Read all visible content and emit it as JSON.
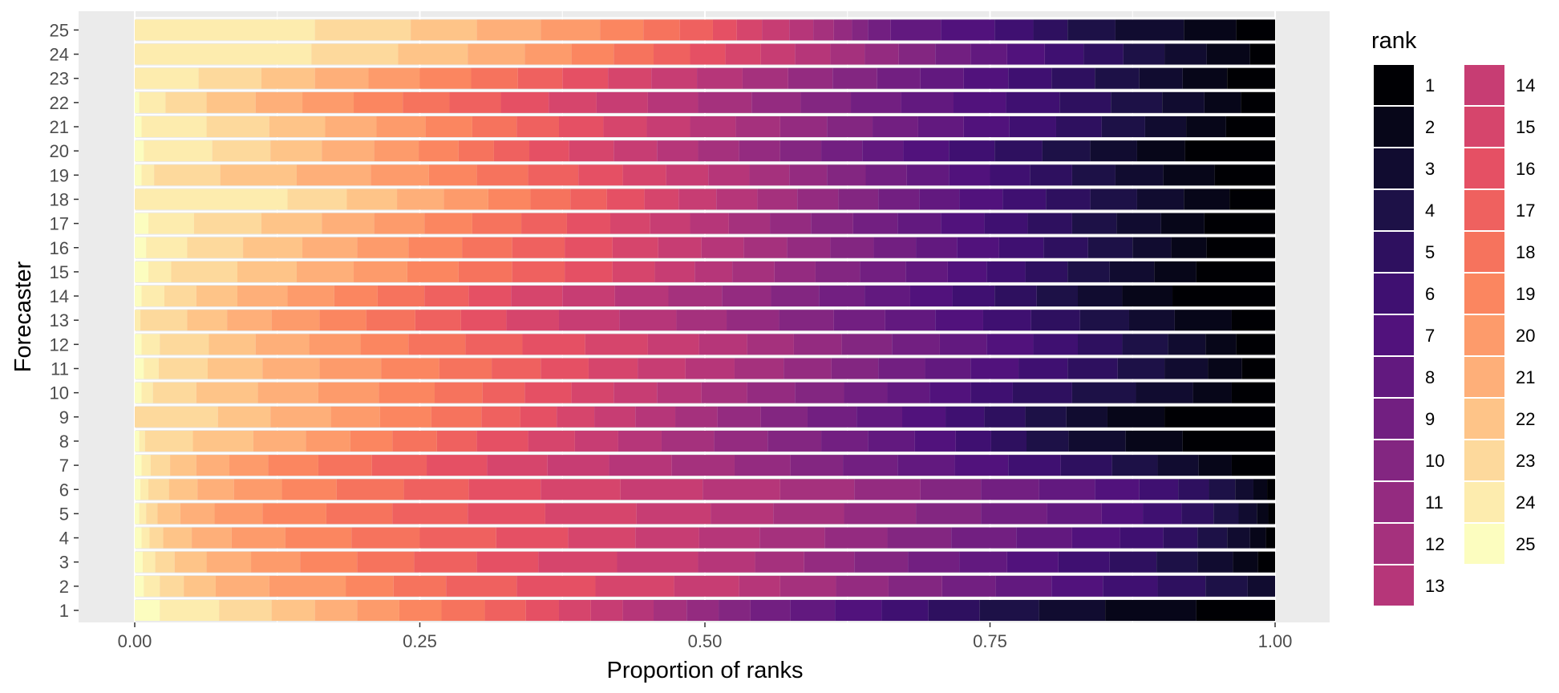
{
  "chart_data": {
    "type": "bar",
    "orientation": "horizontal",
    "stacked": true,
    "xlabel": "Proportion of ranks",
    "ylabel": "Forecaster",
    "xlim": [
      0,
      1
    ],
    "x_ticks": [
      "0.00",
      "0.25",
      "0.50",
      "0.75",
      "1.00"
    ],
    "categories": [
      "1",
      "2",
      "3",
      "4",
      "5",
      "6",
      "7",
      "8",
      "9",
      "10",
      "11",
      "12",
      "13",
      "14",
      "15",
      "16",
      "17",
      "18",
      "19",
      "20",
      "21",
      "22",
      "23",
      "24",
      "25"
    ],
    "legend": {
      "title": "rank",
      "position": "right",
      "labels": [
        "1",
        "2",
        "3",
        "4",
        "5",
        "6",
        "7",
        "8",
        "9",
        "10",
        "11",
        "12",
        "13",
        "14",
        "15",
        "16",
        "17",
        "18",
        "19",
        "20",
        "21",
        "22",
        "23",
        "24",
        "25"
      ],
      "colors": [
        "#000004",
        "#07071d",
        "#140e36",
        "#251255",
        "#3b0f70",
        "#51127c",
        "#641a80",
        "#782281",
        "#8c2981",
        "#a1307e",
        "#b73779",
        "#ca3e72",
        "#de4968",
        "#ec5f5e",
        "#f7705c",
        "#fb8861",
        "#fe9f6d",
        "#feb77e",
        "#fecf92",
        "#fde7a8",
        "#fcfdbf",
        "#fcfdbf",
        "#fcfdbf",
        "#fcfdbf",
        "#fcfdbf"
      ],
      "scale": "magma"
    },
    "grid": true,
    "stack_order_left_to_right": "rank 25 to rank 1",
    "series_boundaries_note": "each row lists cumulative boundaries from x=0 for ranks 25,24,...,1",
    "rows": [
      {
        "forecaster": "1",
        "values": [
          0.022,
          0.074,
          0.12,
          0.158,
          0.195,
          0.232,
          0.269,
          0.307,
          0.343,
          0.372,
          0.4,
          0.428,
          0.455,
          0.484,
          0.512,
          0.54,
          0.575,
          0.614,
          0.655,
          0.696,
          0.741,
          0.793,
          0.851,
          0.931,
          1.0
        ]
      },
      {
        "forecaster": "2",
        "values": [
          0.008,
          0.022,
          0.043,
          0.071,
          0.118,
          0.185,
          0.227,
          0.273,
          0.335,
          0.404,
          0.473,
          0.53,
          0.566,
          0.615,
          0.661,
          0.708,
          0.755,
          0.804,
          0.849,
          0.897,
          0.939,
          0.976,
          1.0,
          1.0,
          1.0
        ]
      },
      {
        "forecaster": "3",
        "values": [
          0.007,
          0.018,
          0.035,
          0.063,
          0.102,
          0.145,
          0.195,
          0.245,
          0.3,
          0.354,
          0.423,
          0.494,
          0.544,
          0.587,
          0.631,
          0.678,
          0.723,
          0.765,
          0.81,
          0.855,
          0.896,
          0.932,
          0.963,
          0.985,
          1.0
        ]
      },
      {
        "forecaster": "4",
        "values": [
          0.006,
          0.013,
          0.025,
          0.05,
          0.085,
          0.132,
          0.19,
          0.25,
          0.317,
          0.38,
          0.439,
          0.495,
          0.548,
          0.605,
          0.66,
          0.716,
          0.773,
          0.822,
          0.864,
          0.902,
          0.932,
          0.958,
          0.978,
          0.992,
          1.0
        ]
      },
      {
        "forecaster": "5",
        "values": [
          0.004,
          0.01,
          0.02,
          0.04,
          0.07,
          0.112,
          0.168,
          0.226,
          0.292,
          0.36,
          0.44,
          0.505,
          0.56,
          0.622,
          0.685,
          0.742,
          0.8,
          0.848,
          0.884,
          0.918,
          0.946,
          0.968,
          0.984,
          0.994,
          1.0
        ]
      },
      {
        "forecaster": "6",
        "values": [
          0.005,
          0.012,
          0.03,
          0.055,
          0.087,
          0.129,
          0.177,
          0.236,
          0.293,
          0.356,
          0.426,
          0.498,
          0.566,
          0.631,
          0.689,
          0.742,
          0.793,
          0.842,
          0.881,
          0.915,
          0.942,
          0.965,
          0.981,
          0.993,
          1.0
        ]
      },
      {
        "forecaster": "7",
        "values": [
          0.006,
          0.014,
          0.031,
          0.054,
          0.083,
          0.117,
          0.161,
          0.208,
          0.256,
          0.309,
          0.362,
          0.416,
          0.471,
          0.526,
          0.575,
          0.621,
          0.669,
          0.719,
          0.766,
          0.812,
          0.857,
          0.897,
          0.933,
          0.962,
          1.0
        ]
      },
      {
        "forecaster": "8",
        "values": [
          0.004,
          0.009,
          0.051,
          0.104,
          0.15,
          0.189,
          0.226,
          0.265,
          0.3,
          0.345,
          0.386,
          0.424,
          0.462,
          0.508,
          0.555,
          0.602,
          0.643,
          0.684,
          0.72,
          0.751,
          0.782,
          0.819,
          0.869,
          0.919,
          1.0
        ]
      },
      {
        "forecaster": "9",
        "values": [
          0.0,
          0.0,
          0.073,
          0.119,
          0.172,
          0.215,
          0.26,
          0.304,
          0.338,
          0.37,
          0.403,
          0.439,
          0.474,
          0.511,
          0.549,
          0.59,
          0.633,
          0.673,
          0.711,
          0.745,
          0.781,
          0.817,
          0.853,
          0.903,
          1.0
        ]
      },
      {
        "forecaster": "10",
        "values": [
          0.006,
          0.016,
          0.054,
          0.108,
          0.161,
          0.214,
          0.263,
          0.305,
          0.342,
          0.383,
          0.42,
          0.458,
          0.497,
          0.537,
          0.579,
          0.622,
          0.66,
          0.697,
          0.733,
          0.77,
          0.822,
          0.878,
          0.928,
          0.962,
          1.0
        ]
      },
      {
        "forecaster": "11",
        "values": [
          0.008,
          0.021,
          0.064,
          0.112,
          0.162,
          0.216,
          0.267,
          0.313,
          0.356,
          0.398,
          0.441,
          0.483,
          0.526,
          0.569,
          0.611,
          0.652,
          0.693,
          0.733,
          0.775,
          0.818,
          0.862,
          0.903,
          0.941,
          0.971,
          1.0
        ]
      },
      {
        "forecaster": "12",
        "values": [
          0.006,
          0.022,
          0.065,
          0.106,
          0.153,
          0.198,
          0.24,
          0.29,
          0.34,
          0.395,
          0.45,
          0.495,
          0.537,
          0.578,
          0.62,
          0.664,
          0.706,
          0.747,
          0.788,
          0.827,
          0.866,
          0.906,
          0.939,
          0.966,
          1.0
        ]
      },
      {
        "forecaster": "13",
        "values": [
          0.0,
          0.005,
          0.046,
          0.081,
          0.12,
          0.162,
          0.203,
          0.246,
          0.286,
          0.326,
          0.372,
          0.425,
          0.475,
          0.519,
          0.565,
          0.613,
          0.658,
          0.702,
          0.744,
          0.786,
          0.829,
          0.872,
          0.912,
          0.962,
          1.0
        ]
      },
      {
        "forecaster": "14",
        "values": [
          0.006,
          0.026,
          0.054,
          0.09,
          0.134,
          0.175,
          0.213,
          0.254,
          0.293,
          0.33,
          0.375,
          0.421,
          0.468,
          0.515,
          0.558,
          0.6,
          0.64,
          0.68,
          0.717,
          0.754,
          0.791,
          0.827,
          0.866,
          0.91,
          1.0
        ]
      },
      {
        "forecaster": "15",
        "values": [
          0.012,
          0.032,
          0.09,
          0.142,
          0.192,
          0.239,
          0.284,
          0.331,
          0.377,
          0.419,
          0.456,
          0.491,
          0.524,
          0.561,
          0.597,
          0.636,
          0.676,
          0.713,
          0.747,
          0.781,
          0.818,
          0.855,
          0.894,
          0.931,
          1.0
        ]
      },
      {
        "forecaster": "16",
        "values": [
          0.01,
          0.046,
          0.095,
          0.147,
          0.195,
          0.24,
          0.287,
          0.331,
          0.377,
          0.419,
          0.459,
          0.497,
          0.534,
          0.572,
          0.61,
          0.648,
          0.685,
          0.721,
          0.758,
          0.797,
          0.836,
          0.875,
          0.909,
          0.94,
          1.0
        ]
      },
      {
        "forecaster": "17",
        "values": [
          0.012,
          0.052,
          0.111,
          0.164,
          0.21,
          0.254,
          0.296,
          0.339,
          0.379,
          0.417,
          0.452,
          0.487,
          0.521,
          0.557,
          0.593,
          0.63,
          0.669,
          0.707,
          0.745,
          0.783,
          0.822,
          0.861,
          0.9,
          0.938,
          1.0
        ]
      },
      {
        "forecaster": "18",
        "values": [
          0.0,
          0.134,
          0.186,
          0.23,
          0.271,
          0.31,
          0.347,
          0.382,
          0.414,
          0.447,
          0.477,
          0.51,
          0.546,
          0.581,
          0.617,
          0.652,
          0.688,
          0.723,
          0.761,
          0.799,
          0.838,
          0.879,
          0.92,
          0.96,
          1.0
        ]
      },
      {
        "forecaster": "19",
        "values": [
          0.006,
          0.017,
          0.075,
          0.142,
          0.207,
          0.258,
          0.3,
          0.345,
          0.389,
          0.428,
          0.466,
          0.503,
          0.539,
          0.574,
          0.607,
          0.641,
          0.677,
          0.714,
          0.75,
          0.785,
          0.822,
          0.86,
          0.902,
          0.947,
          1.0
        ]
      },
      {
        "forecaster": "20",
        "values": [
          0.008,
          0.068,
          0.119,
          0.164,
          0.21,
          0.249,
          0.284,
          0.315,
          0.346,
          0.381,
          0.42,
          0.458,
          0.494,
          0.53,
          0.566,
          0.602,
          0.638,
          0.674,
          0.714,
          0.754,
          0.796,
          0.838,
          0.879,
          0.921,
          1.0
        ]
      },
      {
        "forecaster": "21",
        "values": [
          0.006,
          0.063,
          0.118,
          0.167,
          0.212,
          0.255,
          0.296,
          0.335,
          0.372,
          0.411,
          0.449,
          0.487,
          0.527,
          0.566,
          0.607,
          0.647,
          0.687,
          0.727,
          0.767,
          0.808,
          0.848,
          0.886,
          0.922,
          0.957,
          1.0
        ]
      },
      {
        "forecaster": "22",
        "values": [
          0.004,
          0.027,
          0.063,
          0.106,
          0.147,
          0.192,
          0.235,
          0.276,
          0.321,
          0.363,
          0.405,
          0.45,
          0.494,
          0.541,
          0.584,
          0.628,
          0.672,
          0.718,
          0.764,
          0.811,
          0.856,
          0.901,
          0.938,
          0.97,
          1.0
        ]
      },
      {
        "forecaster": "23",
        "values": [
          0.0,
          0.056,
          0.111,
          0.158,
          0.205,
          0.25,
          0.295,
          0.336,
          0.375,
          0.415,
          0.453,
          0.493,
          0.533,
          0.573,
          0.612,
          0.651,
          0.689,
          0.727,
          0.766,
          0.804,
          0.842,
          0.881,
          0.919,
          0.958,
          1.0
        ]
      },
      {
        "forecaster": "24",
        "values": [
          0.0,
          0.155,
          0.231,
          0.292,
          0.342,
          0.383,
          0.42,
          0.455,
          0.487,
          0.518,
          0.549,
          0.579,
          0.61,
          0.64,
          0.67,
          0.702,
          0.733,
          0.765,
          0.798,
          0.832,
          0.867,
          0.903,
          0.94,
          0.978,
          1.0
        ]
      },
      {
        "forecaster": "25",
        "values": [
          0.0,
          0.158,
          0.242,
          0.3,
          0.356,
          0.408,
          0.446,
          0.478,
          0.507,
          0.528,
          0.55,
          0.574,
          0.595,
          0.613,
          0.629,
          0.643,
          0.663,
          0.707,
          0.754,
          0.788,
          0.818,
          0.86,
          0.92,
          0.966,
          1.0
        ]
      }
    ]
  }
}
